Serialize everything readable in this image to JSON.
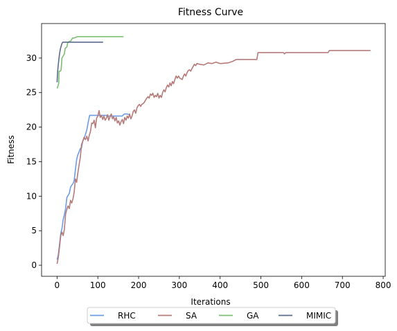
{
  "chart_data": {
    "type": "line",
    "title": "Fitness Curve",
    "xlabel": "Iterations",
    "ylabel": "Fitness",
    "xlim": [
      -38,
      805
    ],
    "ylim": [
      -1.6,
      35.0
    ],
    "xticks": [
      0,
      100,
      200,
      300,
      400,
      500,
      600,
      700,
      800
    ],
    "yticks": [
      0,
      5,
      10,
      15,
      20,
      25,
      30
    ],
    "grid": false,
    "legend": {
      "placement": "bottom-center-outside",
      "ncol": 4,
      "shadow": true
    },
    "series": [
      {
        "name": "RHC",
        "color": "#6e9be6",
        "points": [
          [
            0,
            0.8
          ],
          [
            3,
            1.5
          ],
          [
            6,
            3.0
          ],
          [
            9,
            4.6
          ],
          [
            12,
            5.3
          ],
          [
            15,
            6.6
          ],
          [
            18,
            7.3
          ],
          [
            21,
            8.2
          ],
          [
            24,
            9.8
          ],
          [
            27,
            10.1
          ],
          [
            30,
            10.4
          ],
          [
            33,
            11.3
          ],
          [
            36,
            11.6
          ],
          [
            39,
            11.8
          ],
          [
            42,
            12.3
          ],
          [
            45,
            13.8
          ],
          [
            48,
            15.3
          ],
          [
            51,
            16.0
          ],
          [
            54,
            16.4
          ],
          [
            57,
            16.9
          ],
          [
            60,
            17.0
          ],
          [
            63,
            18.0
          ],
          [
            66,
            18.3
          ],
          [
            70,
            19.0
          ],
          [
            73,
            19.6
          ],
          [
            76,
            20.6
          ],
          [
            80,
            21.7
          ],
          [
            120,
            21.7
          ],
          [
            123,
            21.6
          ],
          [
            160,
            21.6
          ],
          [
            165,
            21.9
          ],
          [
            172,
            21.9
          ],
          [
            177,
            21.8
          ]
        ]
      },
      {
        "name": "SA",
        "color": "#b57b79",
        "points": [
          [
            0,
            0.2
          ],
          [
            3,
            1.1
          ],
          [
            6,
            2.6
          ],
          [
            9,
            4.3
          ],
          [
            12,
            4.8
          ],
          [
            15,
            4.3
          ],
          [
            18,
            5.2
          ],
          [
            21,
            7.4
          ],
          [
            24,
            8.1
          ],
          [
            27,
            8.6
          ],
          [
            30,
            8.2
          ],
          [
            33,
            9.4
          ],
          [
            36,
            9.0
          ],
          [
            39,
            9.6
          ],
          [
            42,
            10.6
          ],
          [
            45,
            12.5
          ],
          [
            48,
            12.0
          ],
          [
            51,
            13.4
          ],
          [
            54,
            14.5
          ],
          [
            57,
            15.6
          ],
          [
            60,
            17.5
          ],
          [
            63,
            17.9
          ],
          [
            66,
            18.5
          ],
          [
            70,
            18.2
          ],
          [
            73,
            18.7
          ],
          [
            76,
            18.0
          ],
          [
            79,
            18.8
          ],
          [
            82,
            19.4
          ],
          [
            85,
            20.6
          ],
          [
            88,
            20.5
          ],
          [
            91,
            21.0
          ],
          [
            94,
            19.9
          ],
          [
            97,
            21.3
          ],
          [
            100,
            21.6
          ],
          [
            103,
            22.4
          ],
          [
            106,
            21.4
          ],
          [
            109,
            21.7
          ],
          [
            112,
            21.1
          ],
          [
            115,
            21.6
          ],
          [
            118,
            21.0
          ],
          [
            121,
            21.3
          ],
          [
            124,
            21.8
          ],
          [
            127,
            21.0
          ],
          [
            130,
            21.5
          ],
          [
            133,
            21.9
          ],
          [
            136,
            21.2
          ],
          [
            139,
            21.5
          ],
          [
            142,
            20.9
          ],
          [
            145,
            21.4
          ],
          [
            148,
            20.6
          ],
          [
            151,
            20.9
          ],
          [
            154,
            20.3
          ],
          [
            157,
            20.8
          ],
          [
            160,
            21.1
          ],
          [
            163,
            20.5
          ],
          [
            166,
            21.4
          ],
          [
            169,
            21.0
          ],
          [
            172,
            21.6
          ],
          [
            175,
            21.3
          ],
          [
            178,
            21.9
          ],
          [
            181,
            21.2
          ],
          [
            184,
            21.6
          ],
          [
            187,
            22.3
          ],
          [
            190,
            22.5
          ],
          [
            193,
            22.0
          ],
          [
            196,
            22.8
          ],
          [
            199,
            23.1
          ],
          [
            202,
            23.3
          ],
          [
            205,
            23.0
          ],
          [
            208,
            23.3
          ],
          [
            211,
            23.4
          ],
          [
            214,
            23.6
          ],
          [
            217,
            23.9
          ],
          [
            220,
            24.2
          ],
          [
            223,
            24.4
          ],
          [
            226,
            24.2
          ],
          [
            229,
            24.8
          ],
          [
            232,
            24.6
          ],
          [
            235,
            24.9
          ],
          [
            238,
            24.3
          ],
          [
            241,
            24.6
          ],
          [
            244,
            24.4
          ],
          [
            247,
            24.9
          ],
          [
            250,
            24.2
          ],
          [
            253,
            24.6
          ],
          [
            256,
            24.3
          ],
          [
            259,
            25.0
          ],
          [
            262,
            25.4
          ],
          [
            265,
            25.1
          ],
          [
            268,
            25.7
          ],
          [
            271,
            26.1
          ],
          [
            274,
            25.8
          ],
          [
            277,
            26.4
          ],
          [
            280,
            26.0
          ],
          [
            283,
            26.6
          ],
          [
            286,
            26.3
          ],
          [
            289,
            26.9
          ],
          [
            292,
            27.4
          ],
          [
            295,
            27.1
          ],
          [
            298,
            27.4
          ],
          [
            301,
            27.1
          ],
          [
            304,
            27.0
          ],
          [
            307,
            26.9
          ],
          [
            310,
            27.4
          ],
          [
            313,
            27.7
          ],
          [
            316,
            27.4
          ],
          [
            319,
            27.9
          ],
          [
            322,
            28.2
          ],
          [
            325,
            28.3
          ],
          [
            328,
            28.1
          ],
          [
            331,
            28.5
          ],
          [
            334,
            28.8
          ],
          [
            337,
            29.1
          ],
          [
            340,
            28.9
          ],
          [
            343,
            29.2
          ],
          [
            350,
            29.1
          ],
          [
            360,
            29.0
          ],
          [
            370,
            29.3
          ],
          [
            380,
            29.2
          ],
          [
            390,
            29.4
          ],
          [
            400,
            29.2
          ],
          [
            420,
            29.3
          ],
          [
            430,
            29.5
          ],
          [
            440,
            29.8
          ],
          [
            460,
            29.8
          ],
          [
            490,
            29.8
          ],
          [
            493,
            30.8
          ],
          [
            555,
            30.8
          ],
          [
            558,
            30.6
          ],
          [
            561,
            30.8
          ],
          [
            665,
            30.8
          ],
          [
            668,
            31.1
          ],
          [
            769,
            31.1
          ]
        ]
      },
      {
        "name": "GA",
        "color": "#7dbd74",
        "points": [
          [
            0,
            25.6
          ],
          [
            2,
            25.9
          ],
          [
            4,
            26.3
          ],
          [
            5,
            28.1
          ],
          [
            8,
            28.1
          ],
          [
            10,
            28.3
          ],
          [
            12,
            30.0
          ],
          [
            14,
            30.2
          ],
          [
            16,
            30.4
          ],
          [
            18,
            30.6
          ],
          [
            20,
            31.4
          ],
          [
            22,
            31.5
          ],
          [
            24,
            31.6
          ],
          [
            26,
            32.2
          ],
          [
            30,
            32.4
          ],
          [
            34,
            32.5
          ],
          [
            38,
            32.9
          ],
          [
            42,
            32.9
          ],
          [
            46,
            33.0
          ],
          [
            50,
            33.1
          ],
          [
            60,
            33.1
          ],
          [
            70,
            33.1
          ],
          [
            100,
            33.1
          ],
          [
            130,
            33.1
          ],
          [
            163,
            33.1
          ]
        ]
      },
      {
        "name": "MIMIC",
        "color": "#5b6b8a",
        "points": [
          [
            0,
            26.5
          ],
          [
            1,
            27.6
          ],
          [
            2,
            28.4
          ],
          [
            4,
            29.6
          ],
          [
            6,
            30.6
          ],
          [
            8,
            31.3
          ],
          [
            10,
            31.7
          ],
          [
            12,
            32.1
          ],
          [
            14,
            32.3
          ],
          [
            20,
            32.3
          ],
          [
            40,
            32.3
          ],
          [
            60,
            32.3
          ],
          [
            80,
            32.3
          ],
          [
            100,
            32.3
          ],
          [
            113,
            32.3
          ]
        ]
      }
    ]
  }
}
